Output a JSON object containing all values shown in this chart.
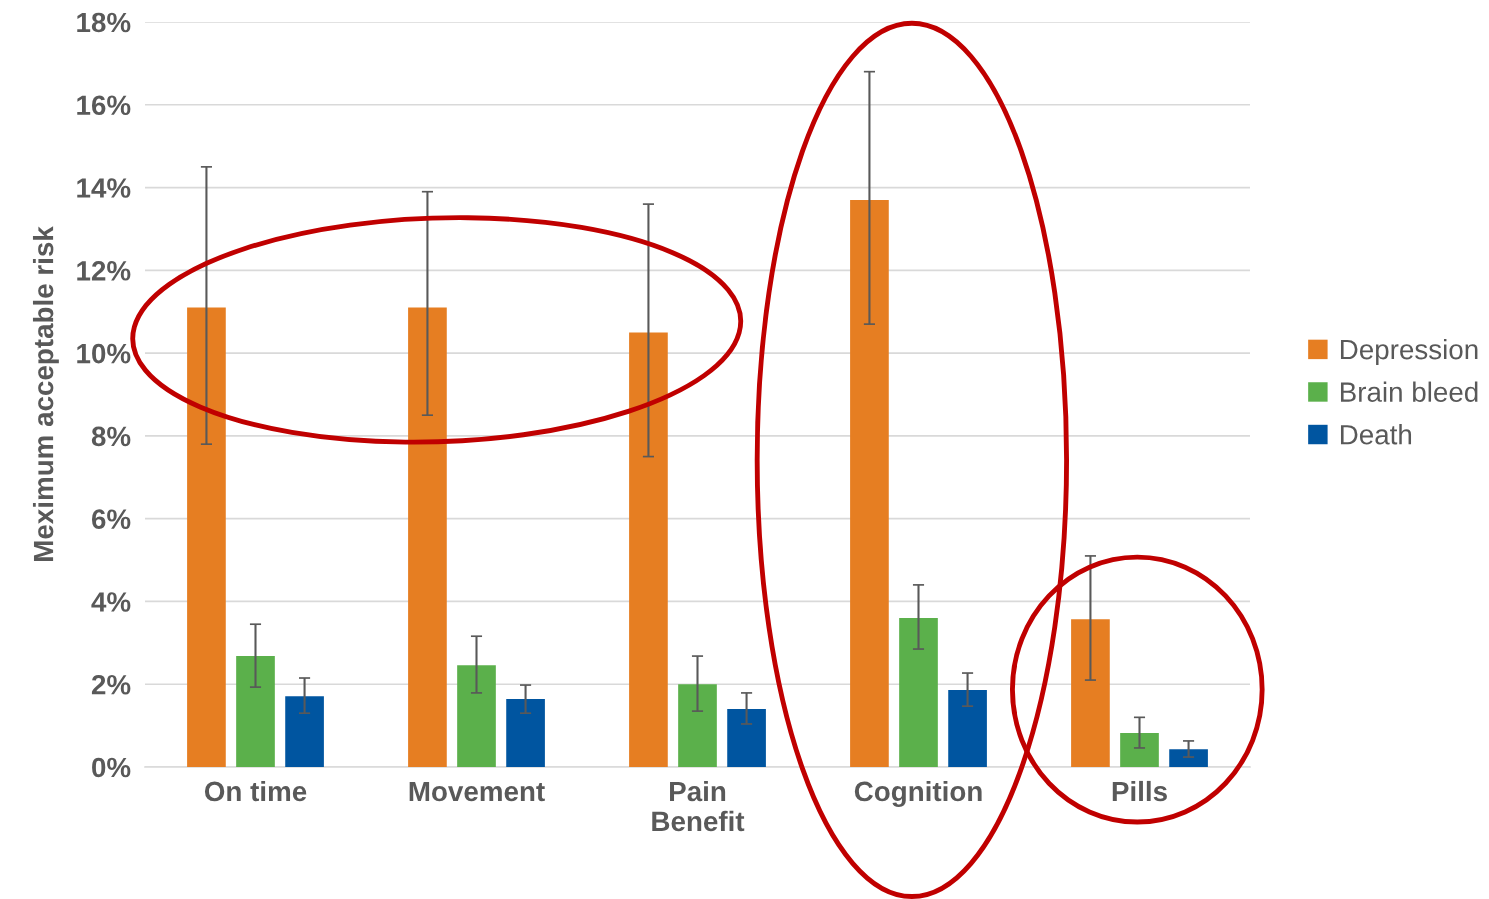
{
  "chart_data": {
    "type": "bar",
    "ylabel": "Meximum acceptable risk",
    "categories": [
      "On time",
      "Movement",
      "Pain\nBenefit",
      "Cognition",
      "Pills"
    ],
    "series": [
      {
        "name": "Depression",
        "color": "#e67e22",
        "values": [
          11.1,
          11.1,
          10.5,
          13.7,
          3.57
        ],
        "errors": [
          [
            7.8,
            14.5
          ],
          [
            8.5,
            13.9
          ],
          [
            7.5,
            13.6
          ],
          [
            10.7,
            16.8
          ],
          [
            2.1,
            5.1
          ]
        ]
      },
      {
        "name": "Brain bleed",
        "color": "#5bb04b",
        "values": [
          2.68,
          2.46,
          2.0,
          3.6,
          0.82
        ],
        "errors": [
          [
            1.93,
            3.45
          ],
          [
            1.79,
            3.16
          ],
          [
            1.35,
            2.68
          ],
          [
            2.85,
            4.4
          ],
          [
            0.46,
            1.2
          ]
        ]
      },
      {
        "name": "Death",
        "color": "#0055a0",
        "values": [
          1.71,
          1.64,
          1.4,
          1.86,
          0.43
        ],
        "errors": [
          [
            1.3,
            2.15
          ],
          [
            1.3,
            1.98
          ],
          [
            1.04,
            1.79
          ],
          [
            1.47,
            2.27
          ],
          [
            0.24,
            0.63
          ]
        ]
      }
    ],
    "ylim": [
      0,
      18
    ],
    "yticks": [
      {
        "value": 0,
        "label": "0%"
      },
      {
        "value": 2,
        "label": "2%"
      },
      {
        "value": 4,
        "label": "4%"
      },
      {
        "value": 6,
        "label": "6%"
      },
      {
        "value": 8,
        "label": "8%"
      },
      {
        "value": 10,
        "label": "10%"
      },
      {
        "value": 12,
        "label": "12%"
      },
      {
        "value": 14,
        "label": "14%"
      },
      {
        "value": 16,
        "label": "16%"
      },
      {
        "value": 18,
        "label": "18%"
      }
    ],
    "grid": "y",
    "legend": "right"
  }
}
